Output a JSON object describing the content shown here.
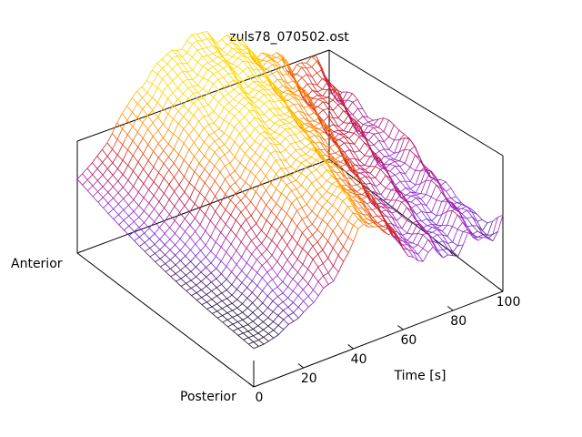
{
  "chart_data": {
    "type": "surface",
    "title": "zuls78_070502.ost",
    "xlabel": "Time [s]",
    "y_axis_end_labels": {
      "start": "Anterior",
      "end": "Posterior"
    },
    "x_ticks": [
      "0",
      "20",
      "40",
      "60",
      "80",
      "100"
    ],
    "xlim": [
      0,
      100
    ],
    "grid": false,
    "legend": "none",
    "color_scale": [
      "#000000",
      "#8a2be2",
      "#c8102e",
      "#ff8c00",
      "#ffd700"
    ],
    "surface_description": "wireframe mesh of displacement vs time across anterior-posterior positions; low flat plateau near time 0 rising to a peaked ridge around 40-70 s with oscillations up to 100 s"
  }
}
